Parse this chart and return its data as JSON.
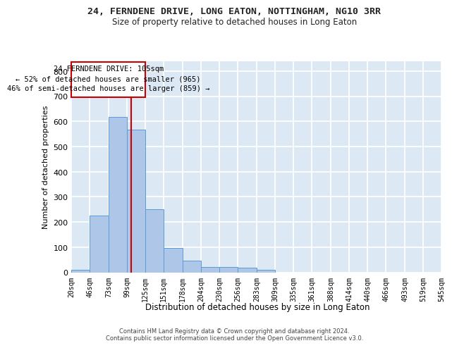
{
  "title_line1": "24, FERNDENE DRIVE, LONG EATON, NOTTINGHAM, NG10 3RR",
  "title_line2": "Size of property relative to detached houses in Long Eaton",
  "xlabel": "Distribution of detached houses by size in Long Eaton",
  "ylabel": "Number of detached properties",
  "footer_line1": "Contains HM Land Registry data © Crown copyright and database right 2024.",
  "footer_line2": "Contains public sector information licensed under the Open Government Licence v3.0.",
  "annotation_line1": "24 FERNDENE DRIVE: 105sqm",
  "annotation_line2": "← 52% of detached houses are smaller (965)",
  "annotation_line3": "46% of semi-detached houses are larger (859) →",
  "property_size": 105,
  "bin_edges": [
    20,
    46,
    73,
    99,
    125,
    151,
    178,
    204,
    230,
    256,
    283,
    309,
    335,
    361,
    388,
    414,
    440,
    466,
    493,
    519,
    545
  ],
  "bin_counts": [
    10,
    225,
    617,
    568,
    252,
    96,
    46,
    21,
    21,
    18,
    10,
    0,
    0,
    0,
    0,
    0,
    0,
    0,
    0,
    0
  ],
  "bar_color": "#aec6e8",
  "bar_edge_color": "#5b9bd5",
  "red_line_color": "#cc0000",
  "annotation_box_color": "#cc0000",
  "background_color": "#dde8f5",
  "grid_color": "#ffffff",
  "ylim": [
    0,
    840
  ],
  "yticks": [
    0,
    100,
    200,
    300,
    400,
    500,
    600,
    700,
    800
  ]
}
